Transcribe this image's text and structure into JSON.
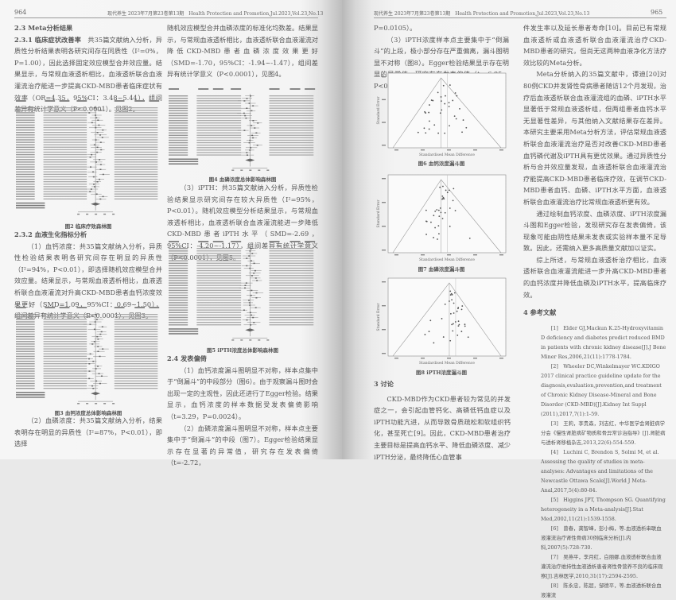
{
  "left_page": {
    "page_number": "964",
    "running_header": "现代养生 2023年7月第23卷第13期　Health Protection and Promotion,Jul.2023,Vol.23,No.13",
    "col1": {
      "h1": "2.3 Meta分析结果",
      "h2": "2.3.1 临床症状改善率",
      "p1": "共35篇文献纳入分析，异质性分析结果表明各研究间存在同质性（I²=0%，P=1.00），因此选择固定效应模型合并效应量。结果显示，与常规血液透析相比，血液透析联合血液灌流治疗能进一步提高CKD-MBD患者临床症状有效率（OR=4.35，95%CI：3.48~5.44），组间差异有统计学意义（P<0.0001）。见图2。",
      "fig2_caption": "图2 临床疗效森林图",
      "h3": "2.3.2 血液生化指标分析",
      "p2": "（1）血钙浓度：共35篇文献纳入分析，异质性检验结果表明各研究间存在明显的异质性（I²=94%，P<0.01），即选择随机效应模型合并效应量。结果显示，与常规血液透析相比，血液透析联合血液灌流对升高CKD-MBD患者血钙浓度效果更好（SMD=1.09，95%CI：0.69~1.50），组间差异有统计学意义（P<0.0001），见图3。",
      "fig3_caption": "图3 血钙浓度总体影响森林图",
      "p3": "（2）血磷浓度：共35篇文献纳入分析，结果表明存在明显的异质性（I²=87%，P<0.01），即选择"
    },
    "col2": {
      "p1": "随机效应模型合并血磷浓度的标准化均数差。结果显示，与常规血液透析相比，血液透析联合血液灌流对降低CKD-MBD患者血磷浓度效果更好（SMD=-1.70，95%CI：-1.94~-1.47），组间差异有统计学意义（P<0.0001），见图4。",
      "fig4_caption": "图4 血磷浓度总体影响森林图",
      "p2": "（3）iPTH：共35篇文献纳入分析，异质性检验结果显示研究间存在较大异质性（I²=95%，P<0.01）。随机效应模型分析结果显示，与常规血液透析相比，血液透析联合血液灌流能进一步降低CKD-MBD患者iPTH水平（SMD=-2.69，95%CI：-4.20~-1.17），组间差异有统计学意义（P<0.0001），见图5。",
      "fig5_caption": "图5 iPTH浓度总体影响森林图",
      "h1": "2.4 发表偏倚",
      "p3": "（1）血钙浓度漏斗图明显不对称，样本点集中于“倒漏斗”的中段部分（图6）。由于观察漏斗图时会出现一定的主观性，因此还进行了Egger检验。结果显示，血钙浓度的样本数据受发表偏倚影响（t=3.29，P=0.0024）。",
      "p4": "（2）血磷浓度漏斗图明显不对称，样本点主要集中于“倒漏斗”的中段（图7）。Egger检验结果显示存在显著的异常值，研究存在发表偏倚（t=-2.72，"
    }
  },
  "right_page": {
    "page_number": "965",
    "running_header": "现代养生 2023年7月第23卷第13期　Health Protection and Promotion,Jul.2023,Vol.23,No.13",
    "col1": {
      "p0": "P=0.0105）。",
      "p1": "（3）iPTH浓度样本点主要集中于“倒漏斗”的上段，极小部分存在严重偏离，漏斗图明显不对称（图8）。Egger检验结果显示存在明显的异常值，研究存在发表偏倚（t=-6.85，P<0.0001）。",
      "funnel_ylabel": "Standard Error",
      "funnel_xlabel": "Standardised Mean Difference",
      "fig6_caption": "图6 血钙浓度漏斗图",
      "fig7_caption": "图7 血磷浓度漏斗图",
      "fig8_caption": "图8 iPTH浓度漏斗图",
      "h1": "3 讨论",
      "p2": "CKD-MBD作为CKD患者较为常见的并发症之一，会引起血管钙化、高磷低钙血症以及iPTH功能亢进，从而导致骨质疏松和软组织钙化，甚至死亡[9]。因此，CKD-MBD患者治疗主要目标是提高血钙水平、降低血磷浓度、减少iPTH分泌，最终降低心血管事"
    },
    "col2": {
      "p1": "件发生率以及延长患者寿命[10]。目前已有常规血液透析或血液透析联合血液灌流治疗CKD-MBD患者的研究，但尚无这两种血液净化方法疗效比较的Meta分析。",
      "p2": "Meta分析纳入的35篇文献中，谭迪[20]对80例CKD并发肾性骨病患者随访12个月发现，治疗后血液透析联合血液灌流组的血磷、iPTH水平显著低于常规血液透析组，但两组患者血钙水平无显著性差异，与其他纳入文献结果存在差异。本研究主要采用Meta分析方法，评估常规血液透析联合血液灌流治疗是否对改善CKD-MBD患者血钙磷代谢及iPTH具有更优效果。通过异质性分析与合并效应量发现，血液透析联合血液灌流治疗能提高CKD-MBD患者临床疗效，在调节CKD-MBD患者血钙、血磷、iPTH水平方面，血液透析联合血液灌流治疗比常规血液透析更有效。",
      "p3": "通过绘制血钙浓度、血磷浓度、iPTH浓度漏斗图和Egger检验，发现研究存在发表偏倚，该现象可能由阴性结果未发表或实验样本量不足导致。因此，还需纳入更多高质量文献加以证实。",
      "p4": "综上所述，与常规血液透析治疗相比，血液透析联合血液灌流能进一步升高CKD-MBD患者的血钙浓度并降低血磷及iPTH水平，提高临床疗效。",
      "h1": "4 参考文献",
      "references": [
        "[1]　Elder GJ,Mackun K.25-Hydroxyvitamin D deficiency and diabetes predict reduced BMD in patients with chronic kidney disease[J].J Bone Miner Res,2006,21(11):1778-1784.",
        "[2]　Wheeler DC,Winkelmayer WC.KDIGO 2017 clinical practice guideline update for the diagnosis,evaluation,prevention,and treatment of Chronic Kidney Disease-Mineral and Bone Disorder (CKD-MBD)[J].Kidney Int Suppl (2011),2017,7(1):1-59.",
        "[3]　王莉，李贵森，刘志红，中华医学会肾脏病学分会《慢性肾脏病矿物质和骨异常诊治指导》[J].肾脏病与透析肾移植杂志,2013,22(6):554-559.",
        "[4]　Luchini C, Brendon S, Solmi M, et al. Assessing the quality of studies in meta-analyses: Advantages and limitations of the Newcastle Ottawa Scale[J].World J Meta-Anal,2017,5(4):80-84.",
        "[5]　Higgins JPT, Thompson SG. Quantifying heterogeneity in a Meta-analysis[J].Stat Med,2002,11(21):1539-1558.",
        "[6]　曾春，龚智峰，彭小梅，等.血液透析串联血液灌流治疗肾性骨病30例临床分析[J].内科,2007(5):728-730.",
        "[7]　吴燕平，李月红，白丽娜.血液透析联合血液灌流治疗维持性血液透析患者肾性骨营养不良的临床观察[J].吉林医学,2010,31(17):2594-2595.",
        "[8]　陈永忠，陈超，邹德平，等.血液透析联合血液灌流"
      ]
    }
  }
}
